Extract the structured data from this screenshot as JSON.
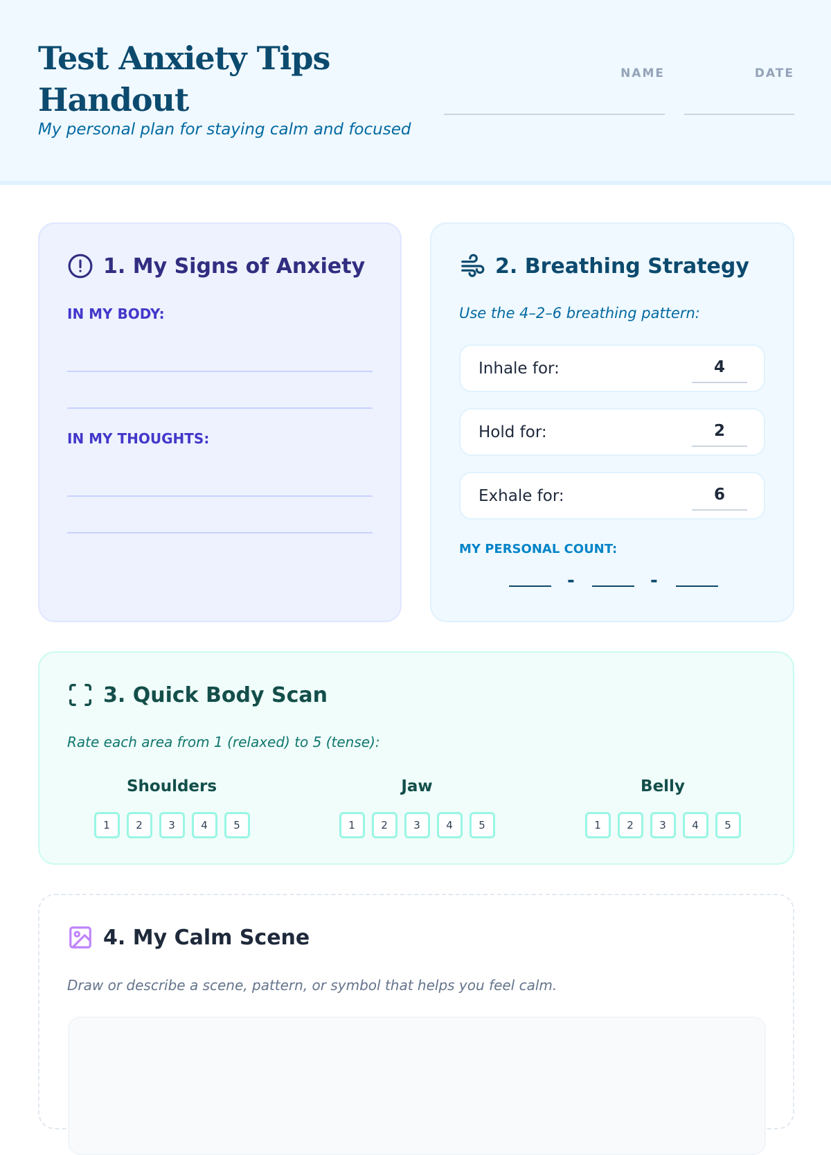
{
  "header": {
    "title": "Test Anxiety Tips Handout",
    "subtitle": "My personal plan for staying calm and focused",
    "name_label": "NAME",
    "date_label": "DATE"
  },
  "signs": {
    "title": "1. My Signs of Anxiety",
    "icon": "alert-circle-icon",
    "body_label": "IN MY BODY:",
    "thoughts_label": "IN MY THOUGHTS:"
  },
  "breathing": {
    "title": "2. Breathing Strategy",
    "icon": "wind-icon",
    "subtitle": "Use the 4–2–6 breathing pattern:",
    "rows": [
      {
        "label": "Inhale for:",
        "value": "4"
      },
      {
        "label": "Hold for:",
        "value": "2"
      },
      {
        "label": "Exhale for:",
        "value": "6"
      }
    ],
    "personal_count_label": "MY PERSONAL COUNT:",
    "separator": "-"
  },
  "body_scan": {
    "title": "3. Quick Body Scan",
    "icon": "scan-icon",
    "subtitle": "Rate each area from 1 (relaxed) to 5 (tense):",
    "areas": [
      "Shoulders",
      "Jaw",
      "Belly"
    ],
    "scale": [
      "1",
      "2",
      "3",
      "4",
      "5"
    ]
  },
  "calm_scene": {
    "title": "4. My Calm Scene",
    "icon": "image-icon",
    "subtitle": "Draw or describe a scene, pattern, or symbol that helps you feel calm."
  },
  "colors": {
    "signs_accent": "#312e81",
    "breathing_accent": "#0c4a6e",
    "scan_accent": "#134e4a",
    "scene_icon": "#c084fc"
  }
}
